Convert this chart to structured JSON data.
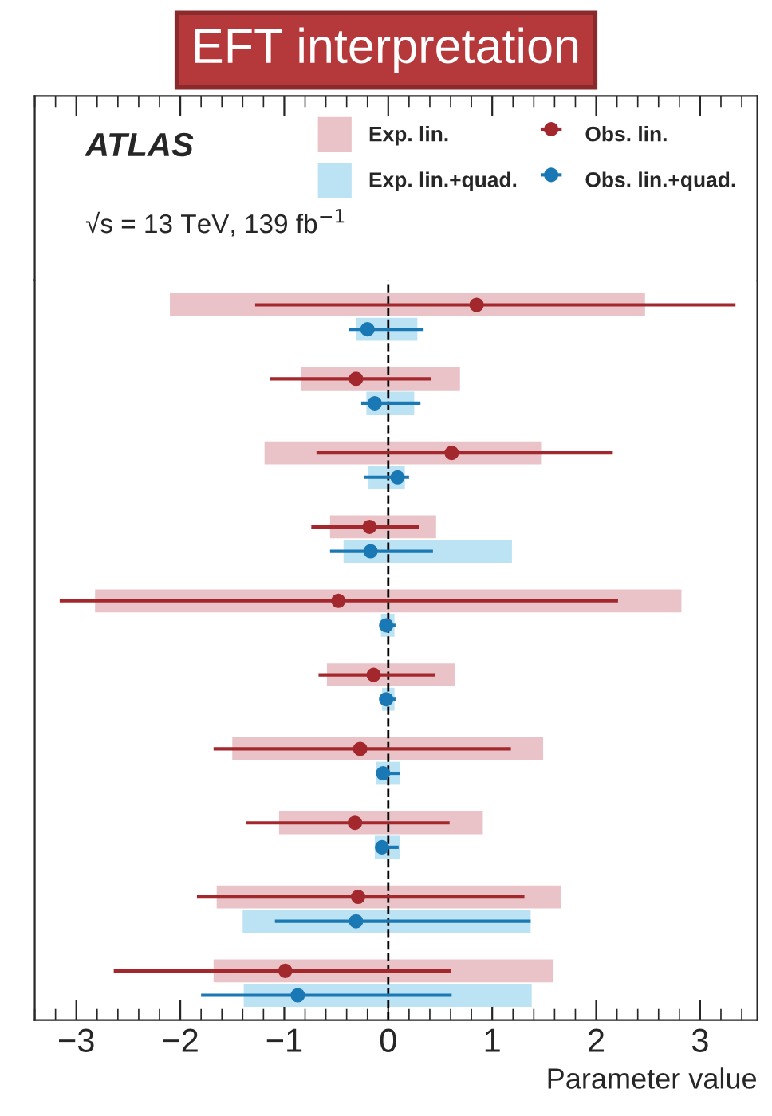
{
  "chart_data": {
    "type": "bar",
    "orientation": "horizontal",
    "title": "EFT interpretation",
    "xlabel": "Parameter value",
    "annotations": [
      "ATLAS",
      "√s = 13 TeV, 139 fb$^{−1}$"
    ],
    "categories": [
      null,
      null,
      null,
      null,
      null,
      null,
      null,
      null,
      null,
      null
    ],
    "series": [
      {
        "name": "Exp. lin.",
        "color": "#e9c3c7",
        "base": [
          -2.1,
          -0.84,
          -1.19,
          -0.56,
          -2.82,
          -0.59,
          -1.5,
          -1.05,
          -1.65,
          -1.68
        ],
        "values": [
          4.57,
          1.53,
          2.66,
          1.02,
          5.64,
          1.23,
          2.99,
          1.96,
          3.31,
          3.27
        ]
      },
      {
        "name": "Exp. lin.+quad.",
        "color": "#bce3f4",
        "base": [
          -0.31,
          -0.21,
          -0.19,
          -0.43,
          -0.07,
          -0.06,
          -0.12,
          -0.13,
          -1.4,
          -1.39
        ],
        "values": [
          0.59,
          0.46,
          0.35,
          1.62,
          0.13,
          0.12,
          0.23,
          0.24,
          2.77,
          2.77
        ]
      },
      {
        "name": "Obs. lin.",
        "type": "scatter",
        "color": "#a3282d",
        "marker": "circle",
        "values": [
          0.85,
          -0.31,
          0.61,
          -0.18,
          -0.48,
          -0.14,
          -0.27,
          -0.32,
          -0.29,
          -0.99
        ],
        "errors": [
          [
            -1.28,
            3.34
          ],
          [
            -1.14,
            0.41
          ],
          [
            -0.69,
            2.16
          ],
          [
            -0.74,
            0.3
          ],
          [
            -3.16,
            2.21
          ],
          [
            -0.67,
            0.45
          ],
          [
            -1.68,
            1.18
          ],
          [
            -1.37,
            0.59
          ],
          [
            -1.84,
            1.31
          ],
          [
            -2.64,
            0.6
          ]
        ]
      },
      {
        "name": "Obs. lin.+quad.",
        "type": "scatter",
        "color": "#1a78b4",
        "marker": "circle",
        "values": [
          -0.2,
          -0.13,
          0.09,
          -0.17,
          -0.02,
          -0.02,
          -0.05,
          -0.06,
          -0.31,
          -0.87
        ],
        "errors": [
          [
            -0.38,
            0.34
          ],
          [
            -0.26,
            0.31
          ],
          [
            -0.23,
            0.2
          ],
          [
            -0.56,
            0.43
          ],
          [
            -0.07,
            0.07
          ],
          [
            -0.07,
            0.07
          ],
          [
            -0.11,
            0.11
          ],
          [
            -0.12,
            0.1
          ],
          [
            -1.09,
            1.37
          ],
          [
            -1.8,
            0.61
          ]
        ]
      }
    ],
    "ref_lines": [
      {
        "axis": "x",
        "value": 0,
        "color": "#000000",
        "line_style": "dashed"
      }
    ],
    "xlim": [
      -3.4,
      3.55
    ],
    "xticks": [
      {
        "value": -3,
        "label": "−3"
      },
      {
        "value": -2,
        "label": "−2"
      },
      {
        "value": -1,
        "label": "−1"
      },
      0,
      1,
      2,
      3
    ],
    "grid": false,
    "legend": "top right"
  }
}
